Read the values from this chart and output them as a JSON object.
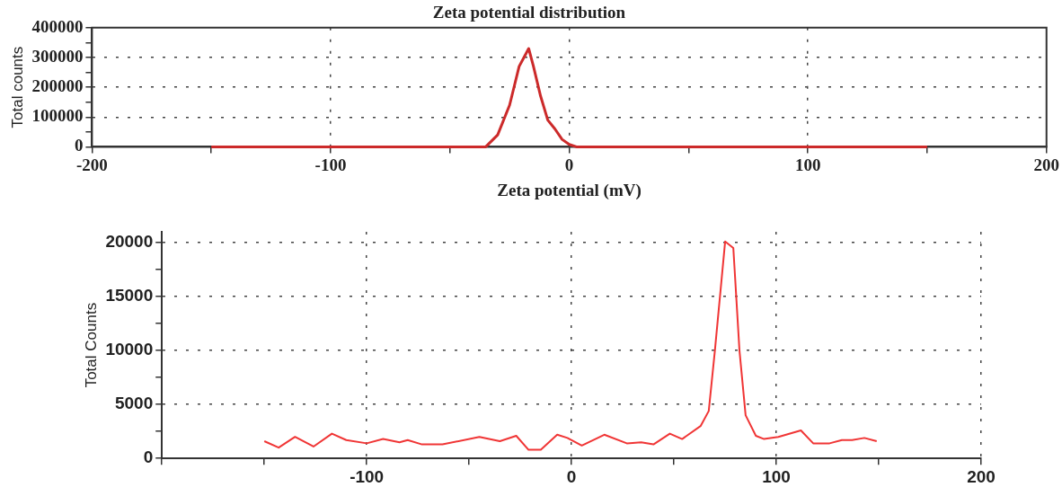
{
  "chart_data": [
    {
      "type": "line",
      "title": "Zeta potential distribution",
      "xlabel": "Zeta potential (mV)",
      "ylabel": "Total counts",
      "series": [
        {
          "color": "#cc2a2a",
          "x": [
            -150,
            -35,
            -30,
            -25,
            -21,
            -19,
            -17,
            -15,
            -12,
            -9,
            -6,
            -3,
            0,
            3,
            150
          ],
          "values": [
            0,
            0,
            40000,
            140000,
            270000,
            300000,
            330000,
            270000,
            170000,
            90000,
            60000,
            25000,
            8000,
            0,
            0
          ]
        }
      ],
      "xlim": [
        -200,
        200
      ],
      "xticks": [
        -200,
        {
          "value": -150,
          "label": null
        },
        -100,
        {
          "value": -50,
          "label": null
        },
        0,
        {
          "value": 50,
          "label": null
        },
        100,
        {
          "value": 150,
          "label": null
        },
        200
      ],
      "ylim": [
        0,
        400000
      ],
      "yticks": [
        0,
        {
          "value": 50000,
          "label": null
        },
        100000,
        {
          "value": 150000,
          "label": null
        },
        200000,
        {
          "value": 250000,
          "label": null
        },
        300000,
        {
          "value": 350000,
          "label": null
        },
        400000
      ],
      "grid": true,
      "legend": false,
      "marker": "none",
      "line_style": "solid"
    },
    {
      "type": "line",
      "ylabel": "Total Counts",
      "series": [
        {
          "color": "#f03535",
          "x": [
            -150,
            -143,
            -135,
            -126,
            -117,
            -110,
            -100,
            -92,
            -84,
            -80,
            -73,
            -63,
            -45,
            -35,
            -27,
            -21,
            -15,
            -7,
            -2,
            5,
            16,
            27,
            34,
            40,
            48,
            54,
            63,
            67,
            70,
            75,
            79,
            82,
            85,
            90,
            94,
            101,
            112,
            118,
            126,
            132,
            137,
            143,
            149
          ],
          "values": [
            1600,
            1000,
            2000,
            1100,
            2300,
            1700,
            1400,
            1800,
            1500,
            1700,
            1300,
            1300,
            2000,
            1600,
            2100,
            800,
            800,
            2200,
            1900,
            1200,
            2200,
            1400,
            1500,
            1300,
            2300,
            1800,
            3000,
            4400,
            10000,
            20100,
            19500,
            10000,
            4000,
            2100,
            1800,
            2000,
            2600,
            1400,
            1400,
            1700,
            1700,
            1900,
            1600
          ]
        }
      ],
      "xlim": [
        -200,
        200
      ],
      "xticks": [
        {
          "value": -200,
          "label": null
        },
        {
          "value": -150,
          "label": null
        },
        -100,
        {
          "value": -50,
          "label": null
        },
        0,
        {
          "value": 50,
          "label": null
        },
        100,
        {
          "value": 150,
          "label": null
        },
        200
      ],
      "ylim": [
        0,
        21000
      ],
      "yticks": [
        0,
        {
          "value": 2500,
          "label": null
        },
        5000,
        {
          "value": 7500,
          "label": null
        },
        10000,
        {
          "value": 12500,
          "label": null
        },
        15000,
        {
          "value": 17500,
          "label": null
        },
        20000
      ],
      "grid": true,
      "legend": false,
      "marker": "none",
      "line_style": "solid"
    }
  ]
}
